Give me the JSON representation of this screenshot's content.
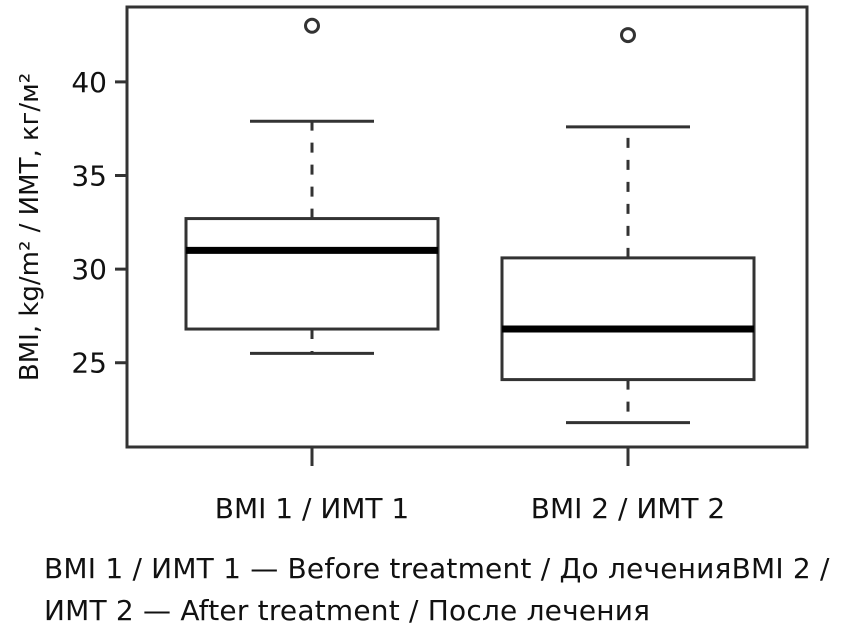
{
  "chart_data": {
    "type": "box",
    "ylabel": "BMI, kg/m² / ИМТ, кг/м²",
    "xlabel": "",
    "ylim": [
      20.5,
      44.0
    ],
    "yticks": [
      25,
      30,
      35,
      40
    ],
    "grid": false,
    "categories": [
      "BMI 1 / ИМТ 1",
      "BMI 2 / ИМТ 2"
    ],
    "boxes": [
      {
        "label": "BMI 1 / ИМТ 1",
        "whisker_low": 25.5,
        "q1": 26.8,
        "median": 31.0,
        "q3": 32.7,
        "whisker_high": 37.9,
        "outliers": [
          43.0
        ]
      },
      {
        "label": "BMI 2 / ИМТ 2",
        "whisker_low": 21.8,
        "q1": 24.1,
        "median": 26.8,
        "q3": 30.6,
        "whisker_high": 37.6,
        "outliers": [
          42.5
        ]
      }
    ]
  },
  "caption": {
    "line1_a": "BMI 1 / ИМТ 1 —  Before treatment / До лечения",
    "line1_b": "BMI 2 / ИМТ 2 —  After treatment / После лечения"
  }
}
